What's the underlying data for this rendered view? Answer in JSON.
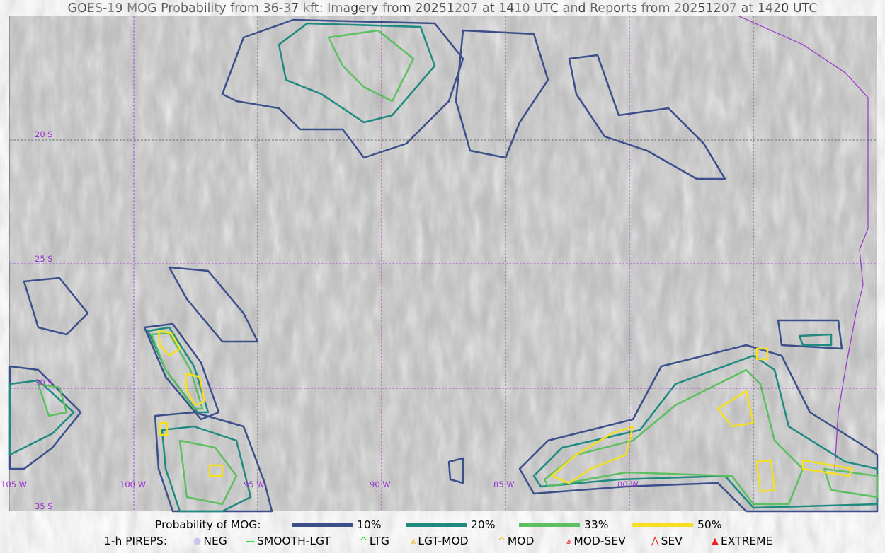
{
  "title": "GOES-19 MOG Probability from 36-37 kft: Imagery from 20251207 at 1410 UTC and Reports from 20251207 at 1420 UTC",
  "map": {
    "lat_labels": [
      "20 S",
      "25 S",
      "30 S",
      "35 S"
    ],
    "lon_labels": [
      "105 W",
      "100 W",
      "95 W",
      "90 W",
      "85 W",
      "80 W"
    ],
    "grid_color": "#9933cc",
    "background": "grayscale water vapor imagery"
  },
  "legend": {
    "prob_title": "Probability of MOG:",
    "levels": [
      {
        "label": "10%",
        "color": "#3b4f8a"
      },
      {
        "label": "20%",
        "color": "#1f8a80"
      },
      {
        "label": "33%",
        "color": "#5cc060"
      },
      {
        "label": "50%",
        "color": "#f5e020"
      }
    ],
    "pirep_title": "1-h PIREPS:",
    "pireps": [
      {
        "label": "NEG",
        "color": "#c8c8f0",
        "icon": "neg-circle-icon"
      },
      {
        "label": "SMOOTH-LGT",
        "color": "#22dd22",
        "icon": "line-icon"
      },
      {
        "label": "LTG",
        "color": "#22dd22",
        "icon": "caret-icon"
      },
      {
        "label": "LGT-MOD",
        "color": "#f5b020",
        "icon": "caret-bar-icon"
      },
      {
        "label": "MOD",
        "color": "#f5b020",
        "icon": "caret-icon"
      },
      {
        "label": "MOD-SEV",
        "color": "#ee2222",
        "icon": "double-caret-bar-icon"
      },
      {
        "label": "SEV",
        "color": "#ee2222",
        "icon": "double-caret-icon"
      },
      {
        "label": "EXTREME",
        "color": "#ee2222",
        "icon": "filled-triangle-icon"
      }
    ]
  }
}
